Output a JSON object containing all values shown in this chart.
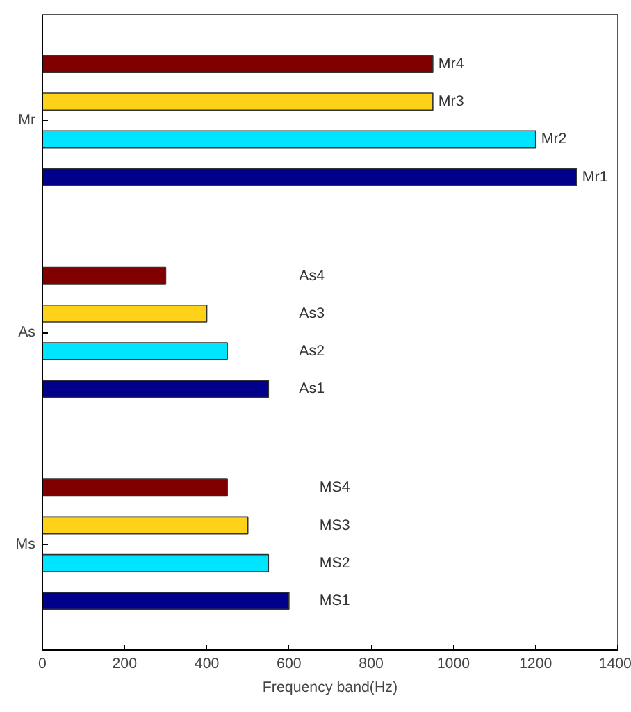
{
  "chart_data": {
    "type": "bar",
    "orientation": "horizontal",
    "xlabel": "Frequency band(Hz)",
    "categories": [
      "Mr",
      "As",
      "Ms"
    ],
    "series": [
      {
        "color": "#00008b",
        "values": [
          1300,
          550,
          600
        ]
      },
      {
        "color": "#00e5ff",
        "values": [
          1200,
          450,
          550
        ]
      },
      {
        "color": "#ffd21a",
        "values": [
          950,
          400,
          500
        ]
      },
      {
        "color": "#800000",
        "values": [
          950,
          300,
          450
        ]
      }
    ],
    "xlim": [
      0,
      1400
    ],
    "xticks": [
      0,
      200,
      400,
      600,
      800,
      1000,
      1200,
      1400
    ],
    "annotations": [
      "Mr1",
      "Mr2",
      "Mr3",
      "Mr4",
      "As1",
      "As2",
      "As3",
      "As4",
      "MS1",
      "MS2",
      "MS3",
      "MS4"
    ]
  }
}
